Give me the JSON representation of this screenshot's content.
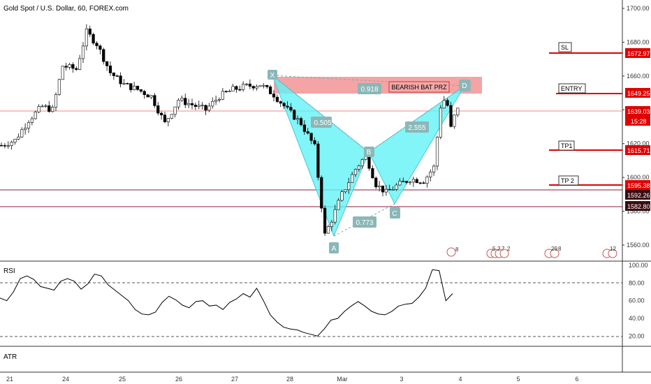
{
  "header": {
    "title": "Gold Spot / U.S. Dollar, 60, FOREX.com"
  },
  "colors": {
    "harmonic_fill": "#61f2f5",
    "harmonic_stroke": "#4fc5d5",
    "prz_fill": "#f08585",
    "level_line": "#e00000",
    "label_bg": "#8bb7b7",
    "candle_up": "#ffffff",
    "candle_down": "#000000",
    "rsi_line": "#000000"
  },
  "chart_data": [
    {
      "type": "candlestick",
      "title": "Gold Spot / U.S. Dollar, 60, FOREX.com",
      "xlabel": "",
      "ylabel": "",
      "x_ticks": [
        "21",
        "24",
        "25",
        "26",
        "27",
        "28",
        "Mar",
        "3",
        "4",
        "5",
        "6"
      ],
      "y_ticks": [
        1700,
        1680,
        1660,
        1640,
        1620,
        1600,
        1580,
        1560
      ],
      "ylim": [
        1553,
        1707
      ],
      "grid": false,
      "price_path": [
        {
          "x": 0,
          "y": 1619
        },
        {
          "x": 2,
          "y": 1622
        },
        {
          "x": 4,
          "y": 1634
        },
        {
          "x": 6,
          "y": 1642
        },
        {
          "x": 7.5,
          "y": 1640
        },
        {
          "x": 9,
          "y": 1666
        },
        {
          "x": 11,
          "y": 1664
        },
        {
          "x": 12.5,
          "y": 1686
        },
        {
          "x": 14,
          "y": 1679
        },
        {
          "x": 16,
          "y": 1662
        },
        {
          "x": 18,
          "y": 1655
        },
        {
          "x": 20,
          "y": 1652
        },
        {
          "x": 22,
          "y": 1648
        },
        {
          "x": 24,
          "y": 1632
        },
        {
          "x": 26,
          "y": 1646
        },
        {
          "x": 28,
          "y": 1643
        },
        {
          "x": 30,
          "y": 1640
        },
        {
          "x": 32,
          "y": 1648
        },
        {
          "x": 34,
          "y": 1652
        },
        {
          "x": 36,
          "y": 1654
        },
        {
          "x": 38,
          "y": 1655
        },
        {
          "x": 40,
          "y": 1649
        },
        {
          "x": 42,
          "y": 1640
        },
        {
          "x": 44,
          "y": 1632
        },
        {
          "x": 46,
          "y": 1618
        },
        {
          "x": 47.5,
          "y": 1566
        },
        {
          "x": 48.5,
          "y": 1575
        },
        {
          "x": 50,
          "y": 1590
        },
        {
          "x": 52,
          "y": 1605
        },
        {
          "x": 53.5,
          "y": 1613
        },
        {
          "x": 55,
          "y": 1596
        },
        {
          "x": 56.5,
          "y": 1591
        },
        {
          "x": 58,
          "y": 1595
        },
        {
          "x": 60,
          "y": 1599
        },
        {
          "x": 62,
          "y": 1598
        },
        {
          "x": 63.5,
          "y": 1606
        },
        {
          "x": 64.5,
          "y": 1642
        },
        {
          "x": 65.3,
          "y": 1648
        },
        {
          "x": 66,
          "y": 1629
        },
        {
          "x": 66.5,
          "y": 1636
        },
        {
          "x": 67,
          "y": 1640
        }
      ],
      "harmonic_pattern": {
        "name": "BEARISH BAT PRZ",
        "points": [
          {
            "label": "X",
            "x": 40,
            "y": 1660
          },
          {
            "label": "A",
            "x": 48,
            "y": 1563
          },
          {
            "label": "B",
            "x": 54,
            "y": 1613
          },
          {
            "label": "C",
            "x": 58,
            "y": 1588
          },
          {
            "label": "D",
            "x": 68,
            "y": 1650
          }
        ],
        "ratios": [
          "0.918",
          "0.505",
          "2.555",
          "0.773"
        ]
      },
      "prz_zone": [
        1649,
        1659
      ],
      "price_levels": [
        {
          "name": "SL",
          "value": "1672.97"
        },
        {
          "name": "ENTRY",
          "value": "1649.25"
        },
        {
          "name": "TP1",
          "value": "1615.71"
        },
        {
          "name": "TP 2",
          "value": "1595.38"
        }
      ],
      "current_price": {
        "value": "1639.03",
        "countdown": "15:28"
      },
      "horizontal_lines": [
        "1592.26",
        "1582.80"
      ],
      "event_markers": [
        "8",
        "5",
        "2",
        "7",
        "2",
        "29",
        "8",
        "12"
      ]
    },
    {
      "type": "line",
      "title": "RSI",
      "ylim": [
        10,
        100
      ],
      "y_ticks": [
        "100.00",
        "80.00",
        "60.00",
        "40.00",
        "20.00"
      ],
      "reference_lines": [
        80,
        20
      ],
      "values": [
        63,
        60,
        70,
        85,
        88,
        84,
        76,
        74,
        72,
        82,
        85,
        82,
        73,
        79,
        90,
        88,
        78,
        72,
        66,
        60,
        50,
        45,
        44,
        47,
        58,
        65,
        61,
        55,
        52,
        59,
        60,
        54,
        55,
        50,
        58,
        62,
        68,
        64,
        74,
        60,
        44,
        36,
        30,
        28,
        27,
        24,
        22,
        20,
        28,
        38,
        40,
        48,
        54,
        59,
        54,
        48,
        45,
        44,
        48,
        54,
        56,
        57,
        64,
        74,
        95,
        94,
        60,
        68
      ]
    },
    {
      "type": "line",
      "title": "ATR",
      "values": []
    }
  ]
}
